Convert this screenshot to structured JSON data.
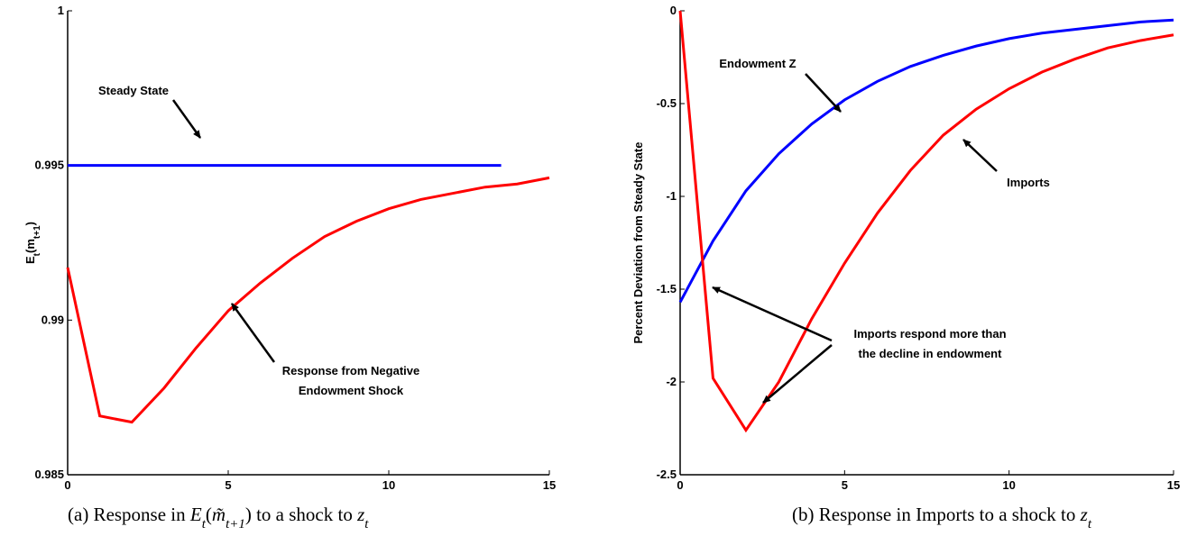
{
  "chart_data": [
    {
      "type": "line",
      "xlim": [
        0,
        15
      ],
      "xticks": [
        0,
        5,
        10,
        15
      ],
      "ylim": [
        0.985,
        1
      ],
      "yticks": [
        0.985,
        0.99,
        0.995,
        1
      ],
      "y_label": [
        {
          "text": "E"
        },
        {
          "text": "t",
          "sub": true
        },
        {
          "text": "(m"
        },
        {
          "text": "t+1",
          "sub": true
        },
        {
          "text": ")"
        }
      ],
      "x": [
        0,
        1,
        2,
        3,
        4,
        5,
        6,
        7,
        8,
        9,
        10,
        11,
        12,
        13,
        14,
        15
      ],
      "series": [
        {
          "color": "#0000ff",
          "x": [
            0,
            13.5
          ],
          "values": [
            0.995,
            0.995
          ]
        },
        {
          "color": "#ff0000",
          "values": [
            0.9917,
            0.9869,
            0.9867,
            0.9878,
            0.9891,
            0.9903,
            0.9912,
            0.992,
            0.9927,
            0.9932,
            0.9936,
            0.9939,
            0.9941,
            0.9943,
            0.9944,
            0.9946
          ]
        }
      ],
      "annotations": [
        {
          "text": [
            "Steady State"
          ]
        },
        {
          "text": [
            "Response from Negative",
            "Endowment Shock"
          ]
        }
      ],
      "caption": [
        {
          "text": "(a) Response in "
        },
        {
          "text": "E",
          "italic": true
        },
        {
          "text": "t",
          "sub": true,
          "italic": true
        },
        {
          "text": "("
        },
        {
          "text": "m̃",
          "italic": true
        },
        {
          "text": "t+1",
          "sub": true,
          "italic": true
        },
        {
          "text": ") to a shock to "
        },
        {
          "text": "z",
          "italic": true
        },
        {
          "text": "t",
          "sub": true,
          "italic": true
        }
      ]
    },
    {
      "type": "line",
      "xlim": [
        0,
        15
      ],
      "xticks": [
        0,
        5,
        10,
        15
      ],
      "ylim": [
        -2.5,
        0
      ],
      "yticks": [
        -2.5,
        -2,
        -1.5,
        -1,
        -0.5,
        0
      ],
      "y_label": [
        {
          "text": "Percent Deviation from Steady State"
        }
      ],
      "x": [
        0,
        1,
        2,
        3,
        4,
        5,
        6,
        7,
        8,
        9,
        10,
        11,
        12,
        13,
        14,
        15
      ],
      "series": [
        {
          "color": "#0000ff",
          "values": [
            -1.57,
            -1.24,
            -0.97,
            -0.77,
            -0.61,
            -0.48,
            -0.38,
            -0.3,
            -0.24,
            -0.19,
            -0.15,
            -0.12,
            -0.1,
            -0.08,
            -0.06,
            -0.05
          ]
        },
        {
          "color": "#ff0000",
          "values": [
            0,
            -1.98,
            -2.26,
            -2.0,
            -1.66,
            -1.36,
            -1.09,
            -0.86,
            -0.67,
            -0.53,
            -0.42,
            -0.33,
            -0.26,
            -0.2,
            -0.16,
            -0.13
          ]
        }
      ],
      "annotations": [
        {
          "text": [
            "Endowment Z"
          ]
        },
        {
          "text": [
            "Imports"
          ]
        },
        {
          "text": [
            "Imports respond more than",
            "the decline in endowment"
          ]
        }
      ],
      "caption": [
        {
          "text": "(b) Response in Imports to a shock to "
        },
        {
          "text": "z",
          "italic": true
        },
        {
          "text": "t",
          "sub": true,
          "italic": true
        }
      ]
    }
  ]
}
